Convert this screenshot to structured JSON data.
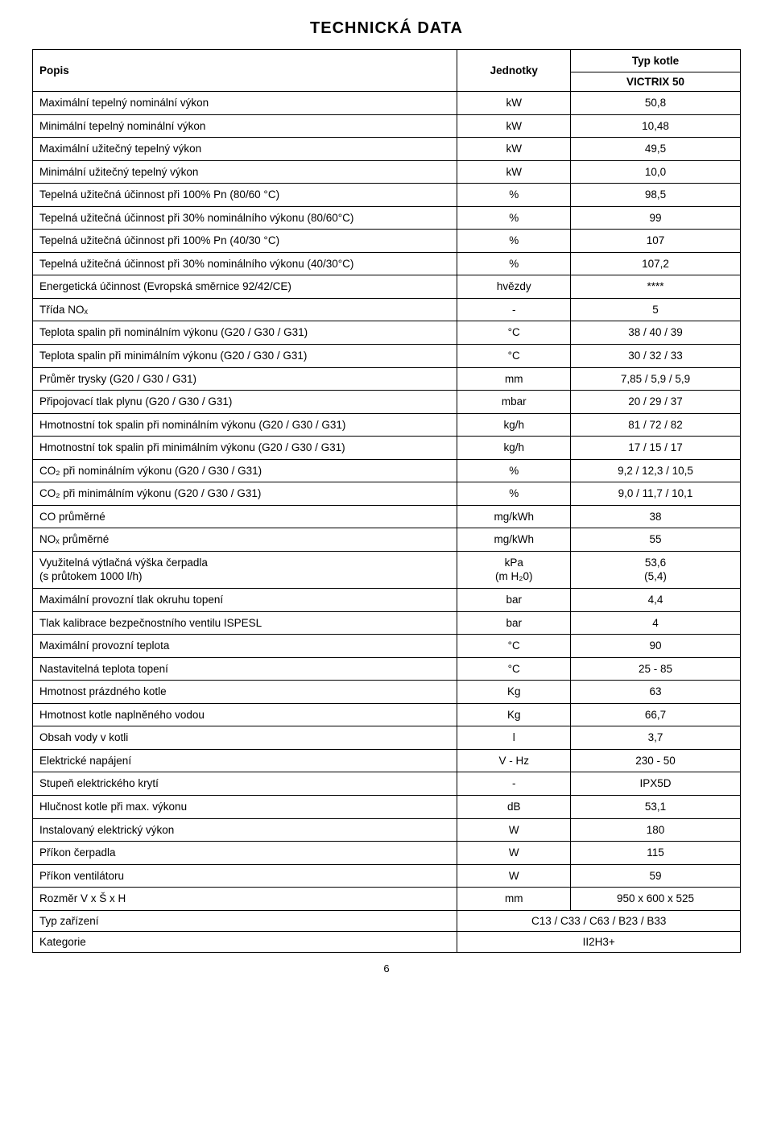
{
  "title": "TECHNICKÁ DATA",
  "header": {
    "popis": "Popis",
    "jednotky": "Jednotky",
    "typ": "Typ kotle"
  },
  "model": "VICTRIX 50",
  "rows": [
    {
      "label": "Maximální tepelný nominální výkon",
      "unit": "kW",
      "value": "50,8"
    },
    {
      "label": "Minimální tepelný nominální výkon",
      "unit": "kW",
      "value": "10,48"
    },
    {
      "label": "Maximální užitečný tepelný výkon",
      "unit": "kW",
      "value": "49,5"
    },
    {
      "label": "Minimální užitečný tepelný výkon",
      "unit": "kW",
      "value": "10,0"
    },
    {
      "label": "Tepelná užitečná účinnost při 100% Pn (80/60 °C)",
      "unit": "%",
      "value": "98,5"
    },
    {
      "label": "Tepelná užitečná účinnost při 30% nominálního výkonu (80/60°C)",
      "unit": "%",
      "value": "99"
    },
    {
      "label": "Tepelná užitečná účinnost při 100% Pn (40/30 °C)",
      "unit": "%",
      "value": "107"
    },
    {
      "label": "Tepelná užitečná účinnost při 30% nominálního výkonu (40/30°C)",
      "unit": "%",
      "value": "107,2"
    },
    {
      "label": "Energetická účinnost  (Evropská směrnice 92/42/CE)",
      "unit": "hvězdy",
      "value": "****"
    },
    {
      "label": "Třída NOₓ",
      "unit": "-",
      "value": "5"
    },
    {
      "label": "Teplota spalin při nominálním výkonu (G20 / G30 / G31)",
      "unit": "°C",
      "value": "38 / 40 / 39"
    },
    {
      "label": "Teplota spalin při minimálním výkonu (G20 / G30 / G31)",
      "unit": "°C",
      "value": "30 / 32 / 33"
    },
    {
      "label": "Průměr trysky (G20 / G30 / G31)",
      "unit": "mm",
      "value": "7,85 / 5,9 / 5,9"
    },
    {
      "label": "Připojovací tlak plynu (G20 / G30 / G31)",
      "unit": "mbar",
      "value": "20 / 29 / 37"
    },
    {
      "label": "Hmotnostní tok spalin při nominálním výkonu (G20 / G30 / G31)",
      "unit": "kg/h",
      "value": "81 / 72 / 82"
    },
    {
      "label": "Hmotnostní tok spalin při minimálním výkonu (G20 / G30 / G31)",
      "unit": "kg/h",
      "value": "17 / 15 / 17"
    },
    {
      "label": "CO₂ při nominálním výkonu (G20 / G30 / G31)",
      "unit": "%",
      "value": "9,2 / 12,3 / 10,5"
    },
    {
      "label": "CO₂ při minimálním výkonu (G20 / G30 / G31)",
      "unit": "%",
      "value": "9,0 / 11,7 / 10,1"
    },
    {
      "label": "CO průměrné",
      "unit": "mg/kWh",
      "value": "38"
    },
    {
      "label": "NOₓ průměrné",
      "unit": "mg/kWh",
      "value": "55"
    },
    {
      "label": "Využitelná výtlačná výška čerpadla\n(s průtokem 1000 l/h)",
      "unit": "kPa\n(m H₂0)",
      "value": "53,6\n(5,4)"
    },
    {
      "label": "Maximální provozní tlak okruhu topení",
      "unit": "bar",
      "value": "4,4"
    },
    {
      "label": "Tlak kalibrace bezpečnostního ventilu ISPESL",
      "unit": "bar",
      "value": "4"
    },
    {
      "label": "Maximální provozní teplota",
      "unit": "°C",
      "value": "90"
    },
    {
      "label": "Nastavitelná teplota topení",
      "unit": "°C",
      "value": "25 - 85"
    },
    {
      "label": "Hmotnost prázdného kotle",
      "unit": "Kg",
      "value": "63"
    },
    {
      "label": "Hmotnost kotle naplněného vodou",
      "unit": "Kg",
      "value": "66,7"
    },
    {
      "label": "Obsah vody v kotli",
      "unit": "l",
      "value": "3,7"
    },
    {
      "label": "Elektrické napájení",
      "unit": "V - Hz",
      "value": "230 - 50"
    },
    {
      "label": "Stupeň elektrického krytí",
      "unit": "-",
      "value": "IPX5D"
    },
    {
      "label": "Hlučnost kotle při max. výkonu",
      "unit": "dB",
      "value": "53,1"
    },
    {
      "label": "Instalovaný elektrický výkon",
      "unit": "W",
      "value": "180"
    },
    {
      "label": "Příkon čerpadla",
      "unit": "W",
      "value": "115"
    },
    {
      "label": "Příkon ventilátoru",
      "unit": "W",
      "value": "59"
    },
    {
      "label": "Rozměr V x Š x H",
      "unit": "mm",
      "value": "950 x 600 x 525"
    }
  ],
  "spanRows": [
    {
      "label": "Typ zařízení",
      "value": "C13 / C33 / C63 / B23 / B33"
    },
    {
      "label": "Kategorie",
      "value": "II2H3+"
    }
  ],
  "pageNumber": "6"
}
